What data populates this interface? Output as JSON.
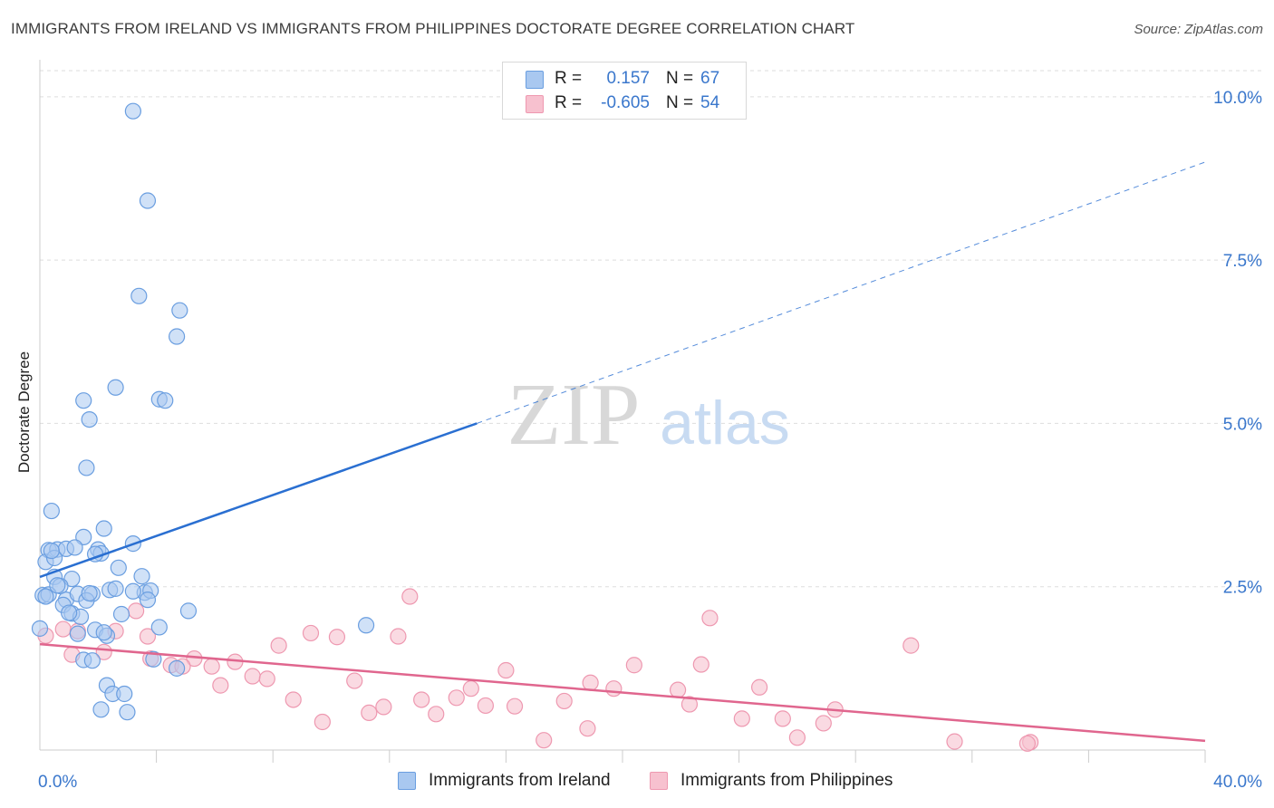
{
  "header": {
    "title": "IMMIGRANTS FROM IRELAND VS IMMIGRANTS FROM PHILIPPINES DOCTORATE DEGREE CORRELATION CHART",
    "source": "Source: ZipAtlas.com"
  },
  "watermark": {
    "zip": "ZIP",
    "atlas": "atlas"
  },
  "legend": {
    "r_label": "R =",
    "n_label": "N =",
    "series": [
      {
        "r": "0.157",
        "n": "67",
        "color": "#9fc3ef"
      },
      {
        "r": "-0.605",
        "n": "54",
        "color": "#f7b7c8"
      }
    ]
  },
  "colors": {
    "ireland_fill": "#a9c8f0",
    "ireland_stroke": "#6a9ee0",
    "ireland_line": "#2a6fd1",
    "philippines_fill": "#f7c1cf",
    "philippines_stroke": "#ee98b0",
    "philippines_line": "#e0668e",
    "grid": "#dddddd",
    "axis_text": "#3a77cc"
  },
  "chart_data": {
    "type": "scatter",
    "title": "IMMIGRANTS FROM IRELAND VS IMMIGRANTS FROM PHILIPPINES DOCTORATE DEGREE CORRELATION CHART",
    "xlabel": "",
    "ylabel": "Doctorate Degree",
    "xlim": [
      0,
      40
    ],
    "ylim": [
      0,
      10.4
    ],
    "x_tick_labels": [
      "0.0%",
      "40.0%"
    ],
    "y_ticks": [
      2.5,
      5.0,
      7.5,
      10.0
    ],
    "y_tick_labels": [
      "2.5%",
      "5.0%",
      "7.5%",
      "10.0%"
    ],
    "grid": "horizontal dashed",
    "legend_position": "top-center and bottom",
    "series": [
      {
        "name": "Immigrants from Ireland",
        "r": 0.157,
        "n": 67,
        "trend": {
          "x": [
            0,
            15.0
          ],
          "y": [
            2.65,
            5.0
          ],
          "extended_to": [
            40.0,
            9.0
          ]
        },
        "points": [
          [
            3.2,
            9.78
          ],
          [
            3.7,
            8.41
          ],
          [
            3.4,
            6.95
          ],
          [
            4.8,
            6.73
          ],
          [
            4.7,
            6.33
          ],
          [
            2.6,
            5.55
          ],
          [
            1.5,
            5.35
          ],
          [
            4.1,
            5.37
          ],
          [
            4.3,
            5.35
          ],
          [
            1.7,
            5.06
          ],
          [
            1.6,
            4.32
          ],
          [
            0.4,
            3.66
          ],
          [
            2.2,
            3.39
          ],
          [
            1.5,
            3.26
          ],
          [
            3.2,
            3.16
          ],
          [
            0.3,
            3.06
          ],
          [
            0.6,
            3.07
          ],
          [
            0.9,
            3.08
          ],
          [
            1.2,
            3.1
          ],
          [
            2.0,
            3.07
          ],
          [
            2.1,
            3.01
          ],
          [
            1.9,
            3.0
          ],
          [
            0.2,
            2.88
          ],
          [
            0.5,
            2.94
          ],
          [
            2.7,
            2.79
          ],
          [
            0.5,
            2.65
          ],
          [
            1.1,
            2.62
          ],
          [
            3.5,
            2.66
          ],
          [
            0.7,
            2.51
          ],
          [
            2.4,
            2.45
          ],
          [
            2.6,
            2.47
          ],
          [
            3.6,
            2.41
          ],
          [
            3.8,
            2.44
          ],
          [
            0.1,
            2.37
          ],
          [
            0.3,
            2.38
          ],
          [
            0.9,
            2.3
          ],
          [
            1.3,
            2.39
          ],
          [
            1.8,
            2.39
          ],
          [
            3.7,
            2.3
          ],
          [
            1.6,
            2.29
          ],
          [
            0.8,
            2.22
          ],
          [
            5.1,
            2.13
          ],
          [
            1.1,
            2.09
          ],
          [
            1.4,
            2.04
          ],
          [
            2.8,
            2.08
          ],
          [
            4.1,
            1.88
          ],
          [
            11.2,
            1.91
          ],
          [
            1.9,
            1.84
          ],
          [
            1.3,
            1.78
          ],
          [
            2.3,
            1.75
          ],
          [
            0.0,
            1.86
          ],
          [
            1.5,
            1.38
          ],
          [
            1.8,
            1.37
          ],
          [
            3.9,
            1.39
          ],
          [
            4.7,
            1.25
          ],
          [
            2.3,
            0.99
          ],
          [
            2.5,
            0.86
          ],
          [
            2.9,
            0.86
          ],
          [
            2.1,
            0.62
          ],
          [
            3.0,
            0.58
          ],
          [
            0.2,
            2.35
          ],
          [
            1.0,
            2.1
          ],
          [
            0.6,
            2.52
          ],
          [
            2.2,
            1.8
          ],
          [
            3.2,
            2.43
          ],
          [
            1.7,
            2.4
          ],
          [
            0.4,
            3.05
          ]
        ]
      },
      {
        "name": "Immigrants from Philippines",
        "r": -0.605,
        "n": 54,
        "trend": {
          "x": [
            0,
            40.0
          ],
          "y": [
            1.62,
            0.14
          ]
        },
        "points": [
          [
            0.2,
            1.75
          ],
          [
            0.8,
            1.85
          ],
          [
            1.3,
            1.82
          ],
          [
            2.6,
            1.82
          ],
          [
            3.7,
            1.74
          ],
          [
            2.2,
            1.5
          ],
          [
            3.3,
            2.13
          ],
          [
            12.7,
            2.35
          ],
          [
            9.3,
            1.79
          ],
          [
            10.2,
            1.73
          ],
          [
            12.3,
            1.74
          ],
          [
            8.2,
            1.6
          ],
          [
            23.0,
            2.02
          ],
          [
            29.9,
            1.6
          ],
          [
            3.8,
            1.4
          ],
          [
            4.5,
            1.3
          ],
          [
            5.3,
            1.4
          ],
          [
            5.9,
            1.28
          ],
          [
            6.7,
            1.35
          ],
          [
            7.3,
            1.13
          ],
          [
            7.8,
            1.09
          ],
          [
            6.2,
            0.99
          ],
          [
            8.7,
            0.77
          ],
          [
            10.8,
            1.06
          ],
          [
            11.3,
            0.57
          ],
          [
            11.8,
            0.66
          ],
          [
            13.1,
            0.77
          ],
          [
            13.6,
            0.55
          ],
          [
            14.3,
            0.8
          ],
          [
            14.8,
            0.94
          ],
          [
            15.3,
            0.68
          ],
          [
            16.0,
            1.22
          ],
          [
            16.3,
            0.67
          ],
          [
            18.0,
            0.75
          ],
          [
            18.9,
            1.03
          ],
          [
            19.7,
            0.94
          ],
          [
            20.4,
            1.3
          ],
          [
            21.9,
            0.92
          ],
          [
            22.3,
            0.7
          ],
          [
            22.7,
            1.31
          ],
          [
            24.1,
            0.48
          ],
          [
            24.7,
            0.96
          ],
          [
            25.5,
            0.48
          ],
          [
            26.0,
            0.19
          ],
          [
            26.9,
            0.41
          ],
          [
            27.3,
            0.62
          ],
          [
            17.3,
            0.15
          ],
          [
            18.8,
            0.33
          ],
          [
            31.4,
            0.13
          ],
          [
            34.0,
            0.12
          ],
          [
            9.7,
            0.43
          ],
          [
            4.9,
            1.28
          ],
          [
            1.1,
            1.46
          ],
          [
            33.9,
            0.1
          ]
        ]
      }
    ]
  },
  "bottom_legend": {
    "items": [
      {
        "label": "Immigrants from Ireland",
        "color": "#a9c8f0"
      },
      {
        "label": "Immigrants from Philippines",
        "color": "#f7c1cf"
      }
    ]
  }
}
